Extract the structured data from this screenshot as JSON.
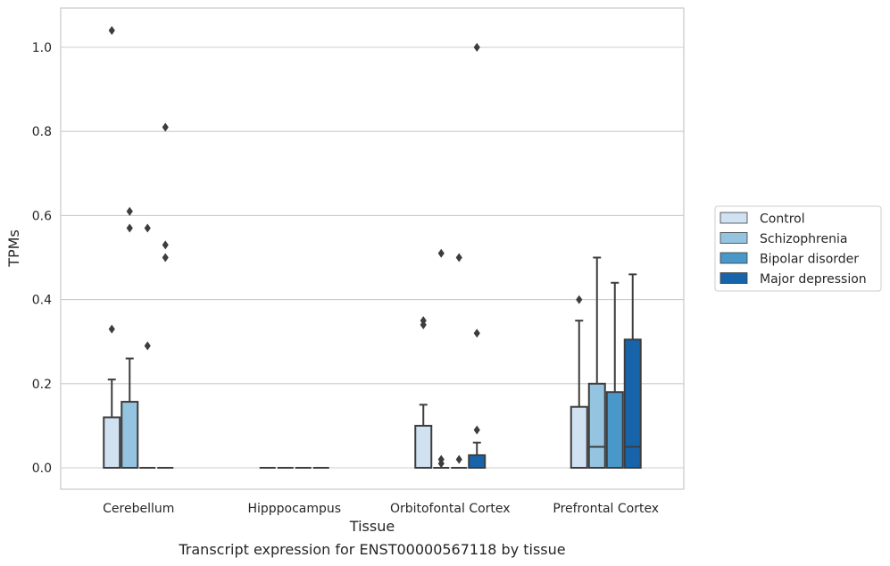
{
  "chart_data": {
    "type": "box",
    "xlabel": "Tissue",
    "ylabel": "TPMs",
    "caption": "Transcript expression for ENST00000567118 by tissue",
    "ylim": [
      -0.05,
      1.09
    ],
    "yticks": [
      "0.0",
      "0.2",
      "0.4",
      "0.6",
      "0.8",
      "1.0"
    ],
    "ytick_values": [
      0,
      0.2,
      0.4,
      0.6,
      0.8,
      1.0
    ],
    "grid": "horizontal",
    "legend_position": "right",
    "categories": [
      "Cerebellum",
      "Hipppocampus",
      "Orbitofontal Cortex",
      "Prefrontal Cortex"
    ],
    "series": [
      {
        "name": "Control",
        "color": "#d0e1f2",
        "boxes": [
          {
            "q1": 0,
            "median": 0,
            "q3": 0.12,
            "whisker_low": 0,
            "whisker_high": 0.21,
            "outliers": [
              0.33,
              1.04
            ]
          },
          {
            "q1": 0,
            "median": 0,
            "q3": 0,
            "whisker_low": 0,
            "whisker_high": 0,
            "outliers": []
          },
          {
            "q1": 0,
            "median": 0,
            "q3": 0.1,
            "whisker_low": 0,
            "whisker_high": 0.15,
            "outliers": [
              0.34,
              0.35
            ]
          },
          {
            "q1": 0,
            "median": 0,
            "q3": 0.145,
            "whisker_low": 0,
            "whisker_high": 0.35,
            "outliers": [
              0.4
            ]
          }
        ]
      },
      {
        "name": "Schizophrenia",
        "color": "#94c4df",
        "boxes": [
          {
            "q1": 0,
            "median": 0,
            "q3": 0.157,
            "whisker_low": 0,
            "whisker_high": 0.26,
            "outliers": [
              0.57,
              0.61
            ]
          },
          {
            "q1": 0,
            "median": 0,
            "q3": 0,
            "whisker_low": 0,
            "whisker_high": 0,
            "outliers": []
          },
          {
            "q1": 0,
            "median": 0,
            "q3": 0,
            "whisker_low": 0,
            "whisker_high": 0,
            "outliers": [
              0.01,
              0.02,
              0.51
            ]
          },
          {
            "q1": 0,
            "median": 0.05,
            "q3": 0.2,
            "whisker_low": 0,
            "whisker_high": 0.5,
            "outliers": []
          }
        ]
      },
      {
        "name": "Bipolar disorder",
        "color": "#4a98c9",
        "boxes": [
          {
            "q1": 0,
            "median": 0,
            "q3": 0,
            "whisker_low": 0,
            "whisker_high": 0,
            "outliers": [
              0.29,
              0.57
            ]
          },
          {
            "q1": 0,
            "median": 0,
            "q3": 0,
            "whisker_low": 0,
            "whisker_high": 0,
            "outliers": []
          },
          {
            "q1": 0,
            "median": 0,
            "q3": 0,
            "whisker_low": 0,
            "whisker_high": 0,
            "outliers": [
              0.02,
              0.5
            ]
          },
          {
            "q1": 0,
            "median": 0,
            "q3": 0.18,
            "whisker_low": 0,
            "whisker_high": 0.44,
            "outliers": []
          }
        ]
      },
      {
        "name": "Major depression",
        "color": "#1764ab",
        "boxes": [
          {
            "q1": 0,
            "median": 0,
            "q3": 0,
            "whisker_low": 0,
            "whisker_high": 0,
            "outliers": [
              0.5,
              0.53,
              0.81
            ]
          },
          {
            "q1": 0,
            "median": 0,
            "q3": 0,
            "whisker_low": 0,
            "whisker_high": 0,
            "outliers": []
          },
          {
            "q1": 0,
            "median": 0,
            "q3": 0.03,
            "whisker_low": 0,
            "whisker_high": 0.06,
            "outliers": [
              0.09,
              0.32,
              1.0
            ]
          },
          {
            "q1": 0,
            "median": 0.05,
            "q3": 0.305,
            "whisker_low": 0,
            "whisker_high": 0.46,
            "outliers": []
          }
        ]
      }
    ]
  }
}
